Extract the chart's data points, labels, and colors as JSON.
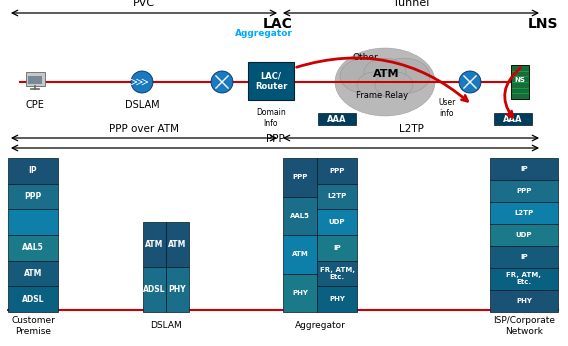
{
  "bg_color": "#ffffff",
  "teal_colors": [
    "#1a5276",
    "#1a6e8a",
    "#0e7fa8",
    "#1a7a8a",
    "#155a7a",
    "#0a6080"
  ],
  "green_server": "#1a6b3c",
  "gray_cloud": "#b0b0b0",
  "red_line": "#cc0000",
  "blue_device": "#1a7abf",
  "dark_teal_box": "#004d6e",
  "pvc_label": "PVC",
  "tunnel_label": "Tunnel",
  "lac_label": "LAC",
  "lns_label": "LNS",
  "ppp_atm_label": "PPP over ATM",
  "ppp_label": "PPP",
  "l2tp_label": "L2TP",
  "cpe_label": "CPE",
  "dslam_label": "DSLAM",
  "aggregator_top_label": "Aggregator",
  "aggregator_bot_label": "Aggregator",
  "isp_label": "ISP/Corporate\nNetwork",
  "customer_label": "Customer\nPremise",
  "atm_label": "ATM",
  "other_label": "Other",
  "fr_label": "Frame Relay",
  "domain_info": "Domain\nInfo",
  "user_info": "User\ninfo",
  "aaa_label": "AAA",
  "lac_router": "LAC/\nRouter",
  "cyan_text": "#00aaff"
}
